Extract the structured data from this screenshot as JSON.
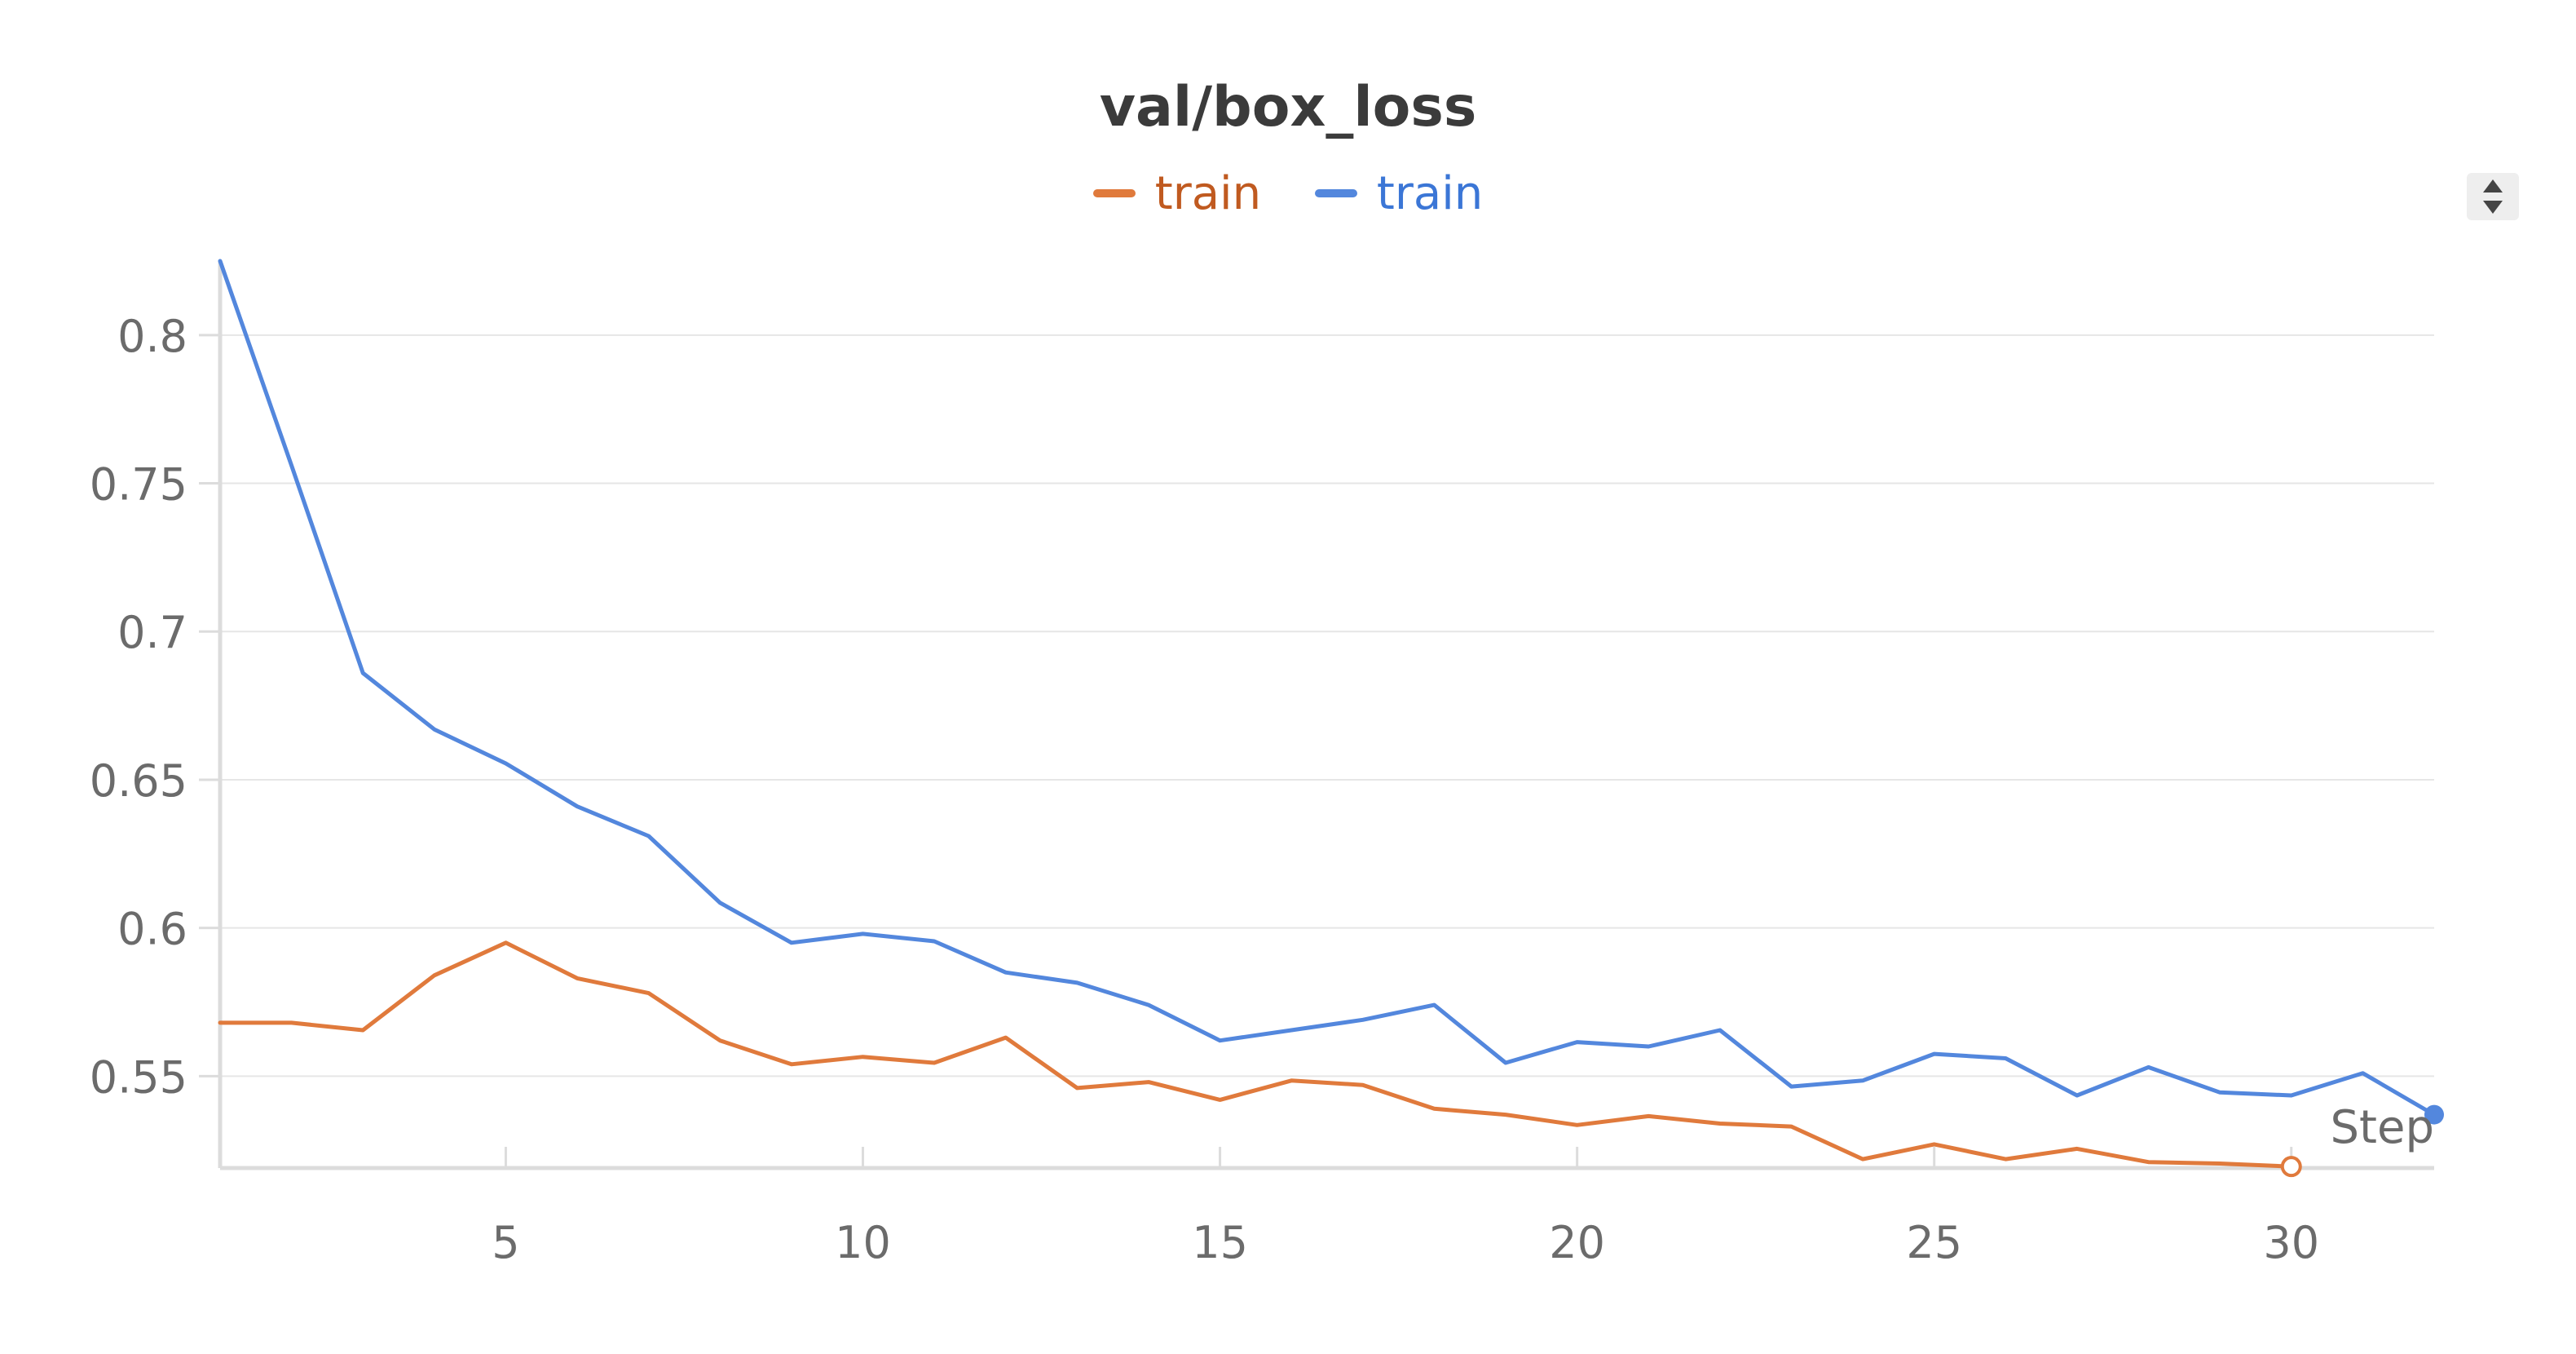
{
  "chart_data": {
    "type": "line",
    "title": "val/box_loss",
    "xlabel": "Step",
    "ylabel": "",
    "xlim": [
      1,
      32
    ],
    "ylim": [
      0.519,
      0.825
    ],
    "x_ticks": [
      5,
      10,
      15,
      20,
      25,
      30
    ],
    "x_tick_labels": [
      "5",
      "10",
      "15",
      "20",
      "25",
      "30"
    ],
    "y_ticks": [
      0.55,
      0.6,
      0.65,
      0.7,
      0.75,
      0.8
    ],
    "y_tick_labels": [
      "0.55",
      "0.6",
      "0.65",
      "0.7",
      "0.75",
      "0.8"
    ],
    "grid": true,
    "legend_position": "top-center",
    "series": [
      {
        "name": "train",
        "color": "#e07a3c",
        "label_color": "#c05a20",
        "x": [
          1,
          2,
          3,
          4,
          5,
          6,
          7,
          8,
          9,
          10,
          11,
          12,
          13,
          14,
          15,
          16,
          17,
          18,
          19,
          20,
          21,
          22,
          23,
          24,
          25,
          26,
          27,
          28,
          29,
          30
        ],
        "y": [
          0.568,
          0.568,
          0.5655,
          0.584,
          0.595,
          0.583,
          0.578,
          0.562,
          0.554,
          0.5565,
          0.5545,
          0.563,
          0.546,
          0.548,
          0.542,
          0.5485,
          0.547,
          0.539,
          0.537,
          0.5335,
          0.5365,
          0.534,
          0.533,
          0.522,
          0.527,
          0.522,
          0.5255,
          0.521,
          0.5205,
          0.5195
        ],
        "end_marker": "hollow"
      },
      {
        "name": "train",
        "color": "#5387dd",
        "label_color": "#3b76d6",
        "x": [
          1,
          2,
          3,
          4,
          5,
          6,
          7,
          8,
          9,
          10,
          11,
          12,
          13,
          14,
          15,
          16,
          17,
          18,
          19,
          20,
          21,
          22,
          23,
          24,
          25,
          26,
          27,
          28,
          29,
          30,
          31,
          32
        ],
        "y": [
          0.825,
          0.756,
          0.686,
          0.667,
          0.6555,
          0.641,
          0.631,
          0.6085,
          0.595,
          0.598,
          0.5955,
          0.585,
          0.5815,
          0.574,
          0.562,
          0.5655,
          0.569,
          0.574,
          0.5545,
          0.5615,
          0.56,
          0.5655,
          0.5465,
          0.5485,
          0.5575,
          0.556,
          0.5435,
          0.553,
          0.5445,
          0.5435,
          0.551,
          0.537
        ],
        "end_marker": "filled"
      }
    ]
  },
  "ui": {
    "sort_icon": "sort-updown-icon",
    "background": "#ffffff",
    "grid_color": "#e6e6e6",
    "axis_color": "#dcdcdc",
    "tick_label_color": "#6b6b6b"
  }
}
